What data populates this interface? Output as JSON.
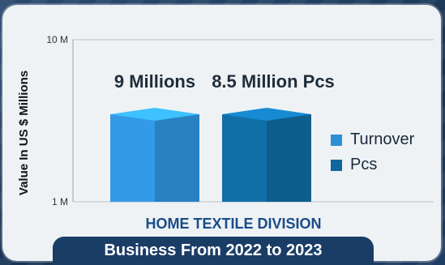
{
  "chart_data": {
    "type": "bar",
    "categories": [
      "Turnover",
      "Pcs"
    ],
    "values": [
      9,
      8.5
    ],
    "data_labels": [
      "9 Millions",
      "8.5 Million Pcs"
    ],
    "series": [
      {
        "name": "Turnover",
        "values": [
          9,
          null
        ]
      },
      {
        "name": "Pcs",
        "values": [
          null,
          8.5
        ]
      }
    ],
    "title": "HOME TEXTILE DIVISION",
    "ylabel": "Value In US $ Millions",
    "yscale": "log",
    "ylim": [
      1,
      10
    ],
    "yticks": [
      "1 M",
      "10 M"
    ],
    "legend_position": "right",
    "grid": true,
    "bar_3d": true
  },
  "colors": {
    "turnover": "#2e8fd6",
    "pcs": "#10679c",
    "title": "#1a4c8a",
    "banner": "#1a3d66"
  },
  "footer": {
    "banner_text": "Business From 2022 to 2023"
  }
}
